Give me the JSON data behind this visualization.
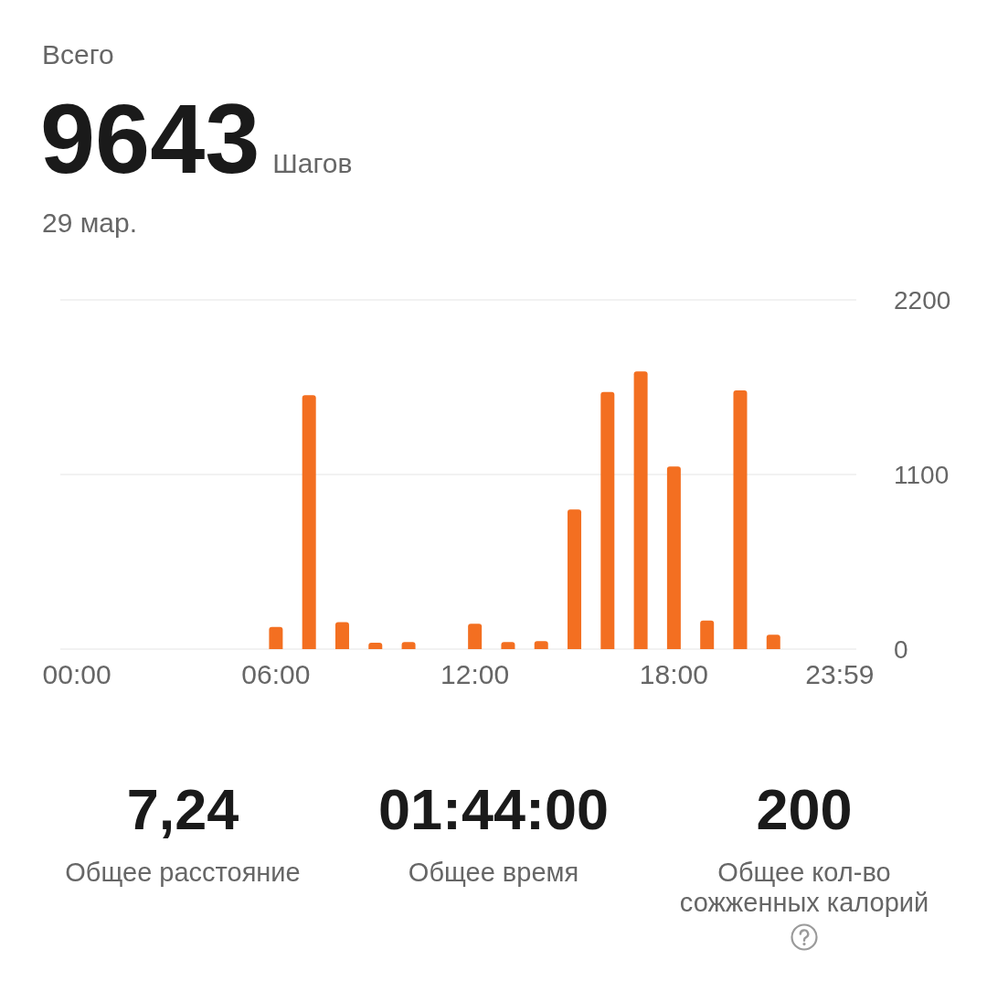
{
  "chart_data": {
    "type": "bar",
    "title": "Всего",
    "annotations": [
      "9643",
      "Шагов",
      "29 мар.",
      "7,24",
      "Общее расстояние",
      "01:44:00",
      "Общее время",
      "200",
      "Общее кол-во сожженных калорий"
    ],
    "categories": [
      "00:00",
      null,
      null,
      null,
      null,
      null,
      "06:00",
      null,
      null,
      null,
      null,
      null,
      "12:00",
      null,
      null,
      null,
      null,
      null,
      "18:00",
      null,
      null,
      null,
      null,
      "23:59"
    ],
    "values": [
      null,
      null,
      null,
      null,
      null,
      null,
      140,
      1600,
      170,
      40,
      45,
      null,
      160,
      45,
      50,
      880,
      1620,
      1750,
      1150,
      180,
      1630,
      90,
      null,
      null
    ],
    "color": "#f36f21",
    "ylim": [
      0,
      2200
    ],
    "yticks": [
      0,
      1100,
      2200
    ],
    "grid": "y"
  }
}
